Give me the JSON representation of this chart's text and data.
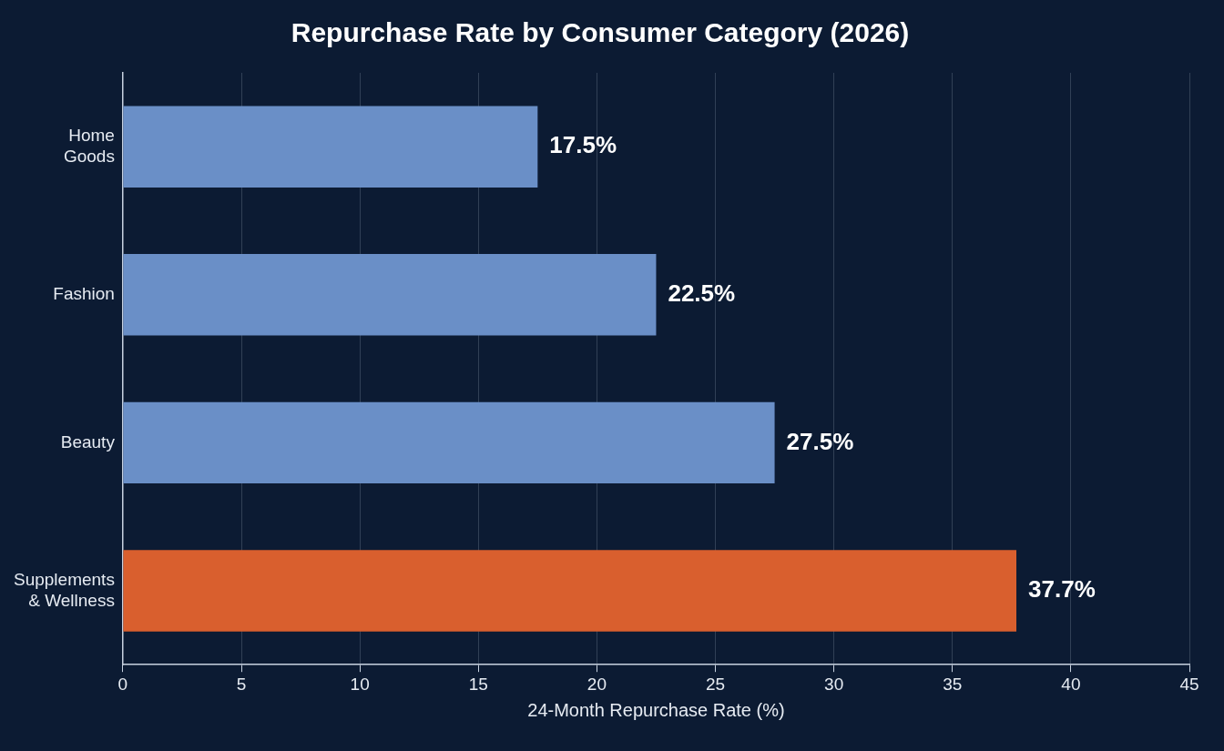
{
  "chart_data": {
    "type": "bar",
    "orientation": "horizontal",
    "title": "Repurchase Rate by Consumer Category (2026)",
    "xlabel": "24-Month Repurchase Rate (%)",
    "categories": [
      "Home\nGoods",
      "Fashion",
      "Beauty",
      "Supplements\n& Wellness"
    ],
    "values": [
      17.5,
      22.5,
      27.5,
      37.7
    ],
    "colors": [
      "#6a8fc7",
      "#6a8fc7",
      "#6a8fc7",
      "#d95f2e"
    ],
    "value_labels": [
      "17.5%",
      "22.5%",
      "27.5%",
      "37.7%"
    ],
    "xlim": [
      0,
      45
    ],
    "xticks": [
      0,
      5,
      10,
      15,
      20,
      25,
      30,
      35,
      40,
      45
    ],
    "grid": "x",
    "legend": false
  }
}
